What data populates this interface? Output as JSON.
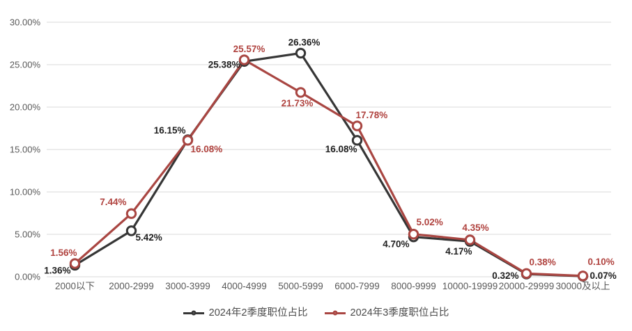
{
  "chart_data": {
    "type": "line",
    "categories": [
      "2000以下",
      "2000-2999",
      "3000-3999",
      "4000-4999",
      "5000-5999",
      "6000-7999",
      "8000-9999",
      "10000-19999",
      "20000-29999",
      "30000及以上"
    ],
    "series": [
      {
        "name": "2024年2季度职位占比",
        "color": "#363636",
        "label_color": "#1f1f1f",
        "values": [
          1.36,
          5.42,
          16.15,
          25.38,
          26.36,
          16.08,
          4.7,
          4.17,
          0.32,
          0.07
        ],
        "labels": [
          "1.36%",
          "5.42%",
          "16.15%",
          "25.38%",
          "26.36%",
          "16.08%",
          "4.70%",
          "4.17%",
          "0.32%",
          "0.07%"
        ],
        "label_offsets": [
          {
            "dx": -6,
            "dy": 12,
            "anchor": "end"
          },
          {
            "dx": 6,
            "dy": 14,
            "anchor": "start"
          },
          {
            "dx": -3,
            "dy": -9,
            "anchor": "end"
          },
          {
            "dx": -6,
            "dy": 9,
            "anchor": "end"
          },
          {
            "dx": 5,
            "dy": -11,
            "anchor": "middle"
          },
          {
            "dx": 0,
            "dy": 17,
            "anchor": "end"
          },
          {
            "dx": -6,
            "dy": 15,
            "anchor": "end"
          },
          {
            "dx": 3,
            "dy": 19,
            "anchor": "end"
          },
          {
            "dx": -11,
            "dy": 7,
            "anchor": "end"
          },
          {
            "dx": 10,
            "dy": 4,
            "anchor": "start"
          }
        ]
      },
      {
        "name": "2024年3季度职位占比",
        "color": "#a94642",
        "label_color": "#b0433f",
        "values": [
          1.56,
          7.44,
          16.08,
          25.57,
          21.73,
          17.78,
          5.02,
          4.35,
          0.38,
          0.1
        ],
        "labels": [
          "1.56%",
          "7.44%",
          "16.08%",
          "25.57%",
          "21.73%",
          "17.78%",
          "5.02%",
          "4.35%",
          "0.38%",
          "0.10%"
        ],
        "label_offsets": [
          {
            "dx": 3,
            "dy": -11,
            "anchor": "end"
          },
          {
            "dx": -7,
            "dy": -12,
            "anchor": "end"
          },
          {
            "dx": 4,
            "dy": 17,
            "anchor": "start"
          },
          {
            "dx": 7,
            "dy": -11,
            "anchor": "middle"
          },
          {
            "dx": -5,
            "dy": 20,
            "anchor": "middle"
          },
          {
            "dx": -2,
            "dy": -11,
            "anchor": "start"
          },
          {
            "dx": 4,
            "dy": -13,
            "anchor": "start"
          },
          {
            "dx": 8,
            "dy": -13,
            "anchor": "middle"
          },
          {
            "dx": 4,
            "dy": -12,
            "anchor": "start"
          },
          {
            "dx": 7,
            "dy": -16,
            "anchor": "start"
          }
        ]
      }
    ],
    "yticks": [
      {
        "value": 0,
        "label": "0.00%"
      },
      {
        "value": 5,
        "label": "5.00%"
      },
      {
        "value": 10,
        "label": "10.00%"
      },
      {
        "value": 15,
        "label": "15.00%"
      },
      {
        "value": 20,
        "label": "20.00%"
      },
      {
        "value": 25,
        "label": "25.00%"
      },
      {
        "value": 30,
        "label": "30.00%"
      }
    ],
    "ylim": [
      0,
      30
    ],
    "title": "",
    "xlabel": "",
    "ylabel": "",
    "grid": "horizontal",
    "gridline_color": "#d9d9d9",
    "axis_text_color": "#595959",
    "legend_position": "bottom"
  }
}
